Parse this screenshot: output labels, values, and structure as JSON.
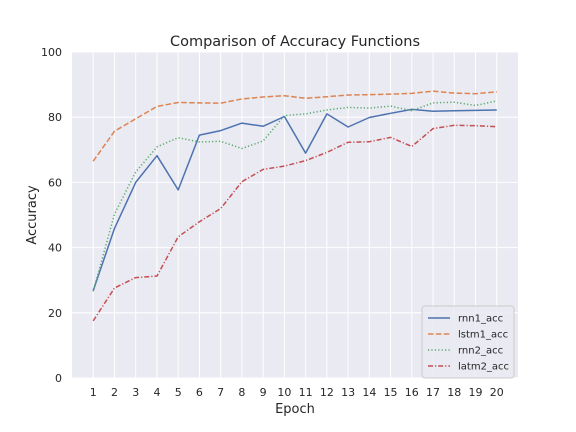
{
  "chart_data": {
    "type": "line",
    "title": "Comparison of Accuracy Functions",
    "xlabel": "Epoch",
    "ylabel": "Accuracy",
    "x": [
      1,
      2,
      3,
      4,
      5,
      6,
      7,
      8,
      9,
      10,
      11,
      12,
      13,
      14,
      15,
      16,
      17,
      18,
      19,
      20
    ],
    "ylim": [
      0,
      100
    ],
    "yticks": [
      0,
      20,
      40,
      60,
      80,
      100
    ],
    "grid": true,
    "legend_position": "lower-right",
    "series": [
      {
        "name": "rnn1_acc",
        "color": "#4c72b0",
        "dash": "solid",
        "values": [
          26.8,
          45.9,
          60.0,
          68.2,
          57.7,
          74.5,
          75.9,
          78.2,
          77.2,
          80.2,
          69.0,
          81.0,
          77.0,
          79.9,
          81.2,
          82.4,
          81.8,
          82.0,
          82.1,
          82.2
        ]
      },
      {
        "name": "lstm1_acc",
        "color": "#dd8452",
        "dash": "dashed",
        "values": [
          66.5,
          75.7,
          79.5,
          83.3,
          84.5,
          84.4,
          84.3,
          85.6,
          86.2,
          86.6,
          85.8,
          86.3,
          86.8,
          86.9,
          87.1,
          87.3,
          88.0,
          87.4,
          87.2,
          87.8
        ]
      },
      {
        "name": "rnn2_acc",
        "color": "#55a868",
        "dash": "dotted",
        "values": [
          26.6,
          50.3,
          63.2,
          70.9,
          73.7,
          72.4,
          72.6,
          70.4,
          72.7,
          80.5,
          81.0,
          82.2,
          83.0,
          82.8,
          83.4,
          82.0,
          84.4,
          84.6,
          83.6,
          85.0
        ]
      },
      {
        "name": "latm2_acc",
        "color": "#c44e52",
        "dash": "dashdot",
        "values": [
          17.5,
          27.6,
          30.8,
          31.3,
          43.3,
          47.9,
          52.0,
          60.2,
          64.0,
          65.0,
          66.7,
          69.2,
          72.3,
          72.5,
          73.8,
          71.0,
          76.5,
          77.5,
          77.4,
          77.1
        ]
      }
    ]
  }
}
